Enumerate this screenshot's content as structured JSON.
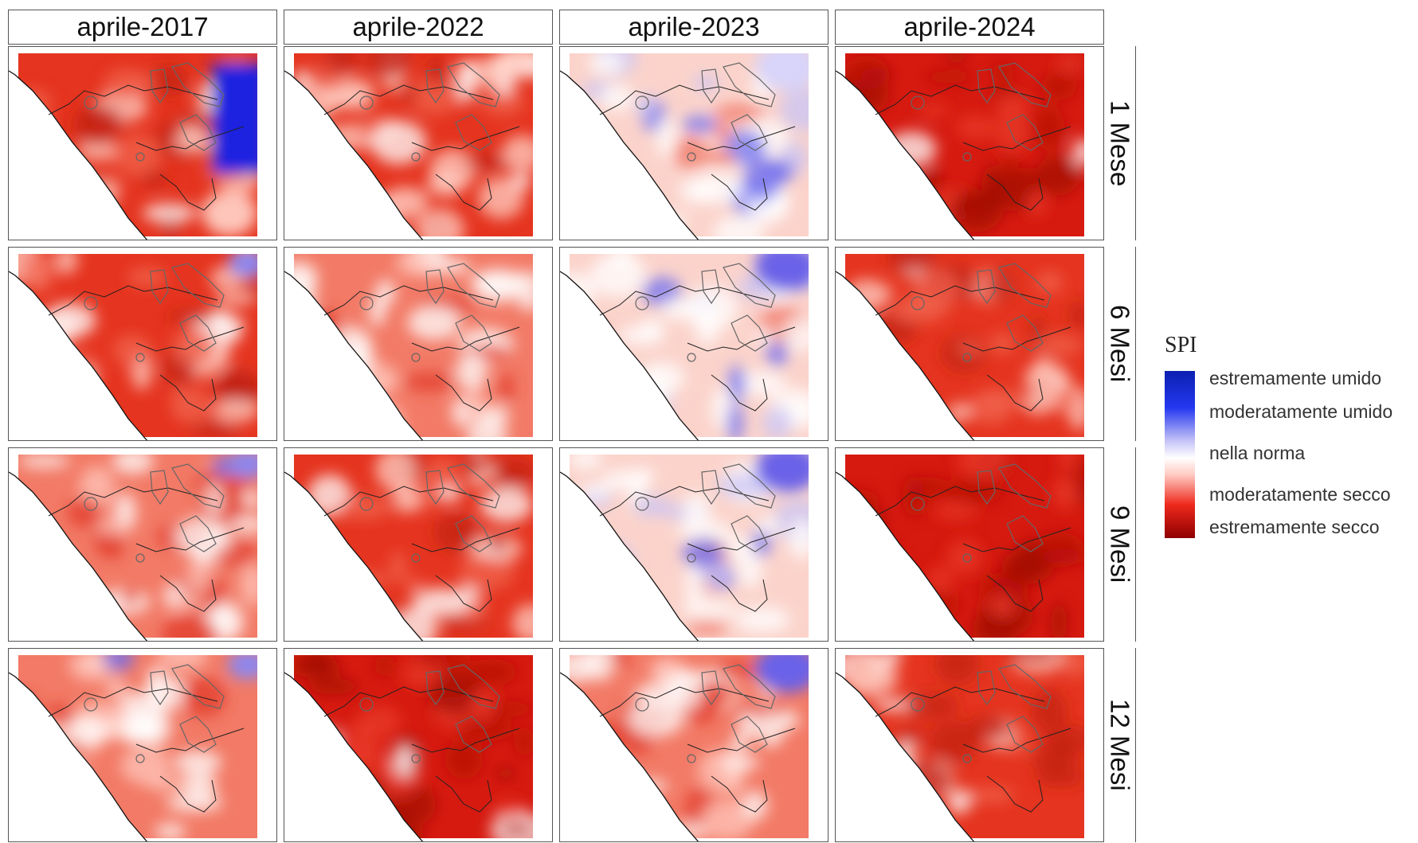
{
  "columns": [
    "aprile-2017",
    "aprile-2022",
    "aprile-2023",
    "aprile-2024"
  ],
  "rows": [
    "1 Mese",
    "6 Mesi",
    "9 Mesi",
    "12 Mesi"
  ],
  "legend": {
    "title": "SPI",
    "labels": [
      "estremamente umido",
      "moderatamente umido",
      "nella norma",
      "moderatamente secco",
      "estremamente secco"
    ]
  },
  "colors": {
    "extremely_wet": "#0b1fb0",
    "moderately_wet": "#2438f0",
    "normal": "#ffffff",
    "moderately_dry": "#ee2a1c",
    "extremely_dry": "#8e0000"
  },
  "panel_tone": [
    [
      "dry",
      "dry",
      "wet-mix",
      "very-dry"
    ],
    [
      "dry",
      "mix",
      "wet-mix",
      "dry"
    ],
    [
      "mix",
      "dry",
      "wet-mix",
      "very-dry"
    ],
    [
      "mix",
      "very-dry",
      "mix",
      "dry"
    ]
  ]
}
